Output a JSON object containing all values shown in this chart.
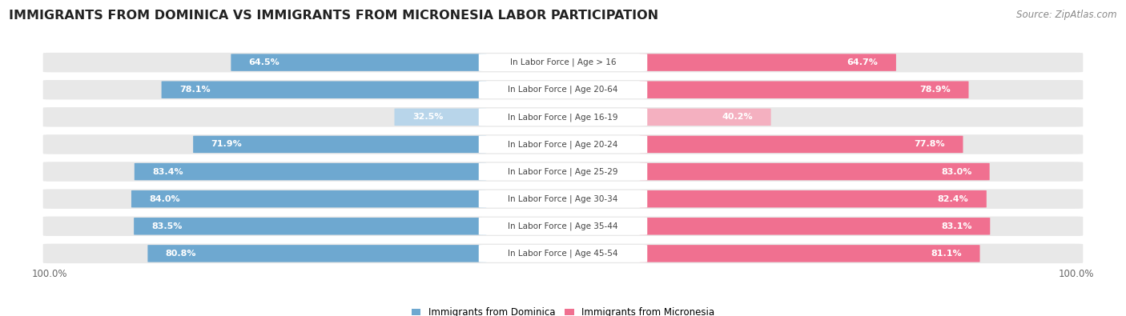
{
  "title": "IMMIGRANTS FROM DOMINICA VS IMMIGRANTS FROM MICRONESIA LABOR PARTICIPATION",
  "source": "Source: ZipAtlas.com",
  "categories": [
    "In Labor Force | Age > 16",
    "In Labor Force | Age 20-64",
    "In Labor Force | Age 16-19",
    "In Labor Force | Age 20-24",
    "In Labor Force | Age 25-29",
    "In Labor Force | Age 30-34",
    "In Labor Force | Age 35-44",
    "In Labor Force | Age 45-54"
  ],
  "dominica_values": [
    64.5,
    78.1,
    32.5,
    71.9,
    83.4,
    84.0,
    83.5,
    80.8
  ],
  "micronesia_values": [
    64.7,
    78.9,
    40.2,
    77.8,
    83.0,
    82.4,
    83.1,
    81.1
  ],
  "dominica_color": "#6ea8d0",
  "dominica_color_light": "#b8d5ea",
  "micronesia_color": "#f07090",
  "micronesia_color_light": "#f4b0c0",
  "row_bg_color": "#e8e8e8",
  "row_bg_color_light": "#f0f0f0",
  "max_value": 100.0,
  "legend_label_dominica": "Immigrants from Dominica",
  "legend_label_micronesia": "Immigrants from Micronesia",
  "title_fontsize": 11.5,
  "source_fontsize": 8.5,
  "bar_label_fontsize": 8,
  "category_label_fontsize": 7.5,
  "footer_label": "100.0%"
}
